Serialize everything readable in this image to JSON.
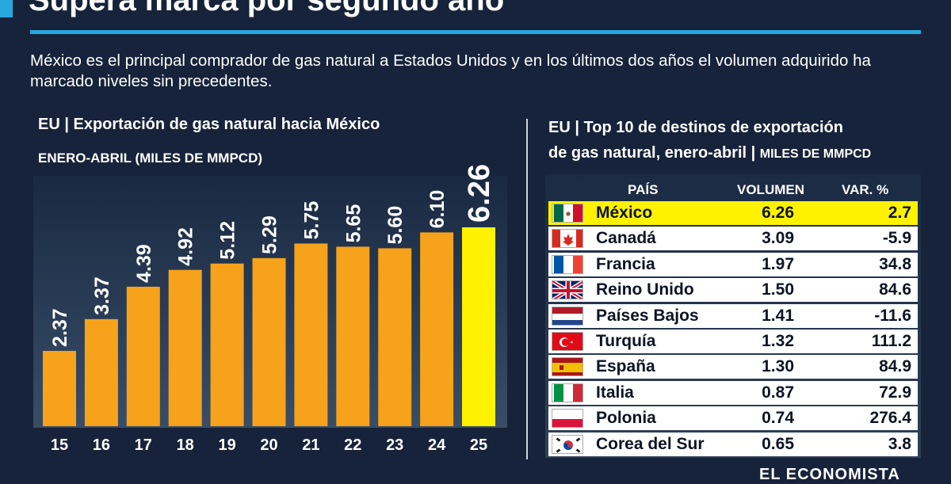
{
  "headline": "Supera marca por segundo año",
  "intro": "México es el principal comprador de gas natural a Estados Unidos y en los últimos dos años el volumen adquirido ha marcado niveles sin precedentes.",
  "chart_data": {
    "type": "bar",
    "title": "EU  |  Exportación de gas natural hacia México",
    "subtitle": "ENERO-ABRIL (MILES DE MMPCD)",
    "categories": [
      "15",
      "16",
      "17",
      "18",
      "19",
      "20",
      "21",
      "22",
      "23",
      "24",
      "25"
    ],
    "values": [
      2.37,
      3.37,
      4.39,
      4.92,
      5.12,
      5.29,
      5.75,
      5.65,
      5.6,
      6.1,
      6.26
    ],
    "labels": [
      "2.37",
      "3.37",
      "4.39",
      "4.92",
      "5.12",
      "5.29",
      "5.75",
      "5.65",
      "5.60",
      "6.10",
      "6.26"
    ],
    "highlight_index": 10,
    "colors": {
      "bar": "#f6a21a",
      "highlight": "#fff200"
    },
    "ylim": [
      0,
      6.26
    ],
    "grid": false
  },
  "table": {
    "title_line1": "EU  |  Top 10 de destinos de exportación",
    "title_line2": "de gas natural, enero-abril  |  ",
    "title_unit": "MILES DE MMPCD",
    "headers": {
      "country": "PAÍS",
      "volume": "VOLUMEN",
      "change": "VAR. %"
    },
    "rows": [
      {
        "country": "México",
        "volume": "6.26",
        "change": "2.7",
        "flag": "mexico-flag-icon"
      },
      {
        "country": "Canadá",
        "volume": "3.09",
        "change": "-5.9",
        "flag": "canada-flag-icon"
      },
      {
        "country": "Francia",
        "volume": "1.97",
        "change": "34.8",
        "flag": "france-flag-icon"
      },
      {
        "country": "Reino Unido",
        "volume": "1.50",
        "change": "84.6",
        "flag": "uk-flag-icon"
      },
      {
        "country": "Países Bajos",
        "volume": "1.41",
        "change": "-11.6",
        "flag": "netherlands-flag-icon"
      },
      {
        "country": "Turquía",
        "volume": "1.32",
        "change": "111.2",
        "flag": "turkey-flag-icon"
      },
      {
        "country": "España",
        "volume": "1.30",
        "change": "84.9",
        "flag": "spain-flag-icon"
      },
      {
        "country": "Italia",
        "volume": "0.87",
        "change": "72.9",
        "flag": "italy-flag-icon"
      },
      {
        "country": "Polonia",
        "volume": "0.74",
        "change": "276.4",
        "flag": "poland-flag-icon"
      },
      {
        "country": "Corea del Sur",
        "volume": "0.65",
        "change": "3.8",
        "flag": "south-korea-flag-icon"
      }
    ],
    "highlight_index": 0
  },
  "logo": "EL ECONOMISTA"
}
